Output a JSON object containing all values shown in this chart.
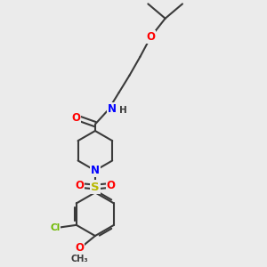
{
  "bg_color": "#ebebeb",
  "bond_color": "#3a3a3a",
  "bond_width": 1.5,
  "atom_colors": {
    "O": "#ff0000",
    "N": "#0000ff",
    "S": "#b8b800",
    "Cl": "#6db800",
    "C": "#3a3a3a"
  },
  "font_size": 7.5
}
